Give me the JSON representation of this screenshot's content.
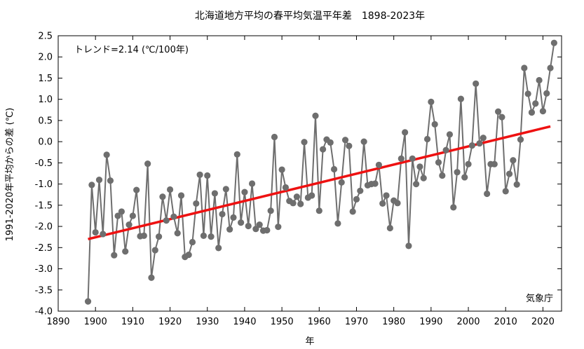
{
  "chart_data": {
    "type": "line",
    "title": "北海道地方平均の春平均気温平年差　1898-2023年",
    "xlabel": "年",
    "ylabel": "1991-2020年平均からの差 (℃)",
    "xlim": [
      1890,
      2025
    ],
    "ylim": [
      -4.0,
      2.5
    ],
    "xticks": [
      "1890",
      "1900",
      "1910",
      "1920",
      "1930",
      "1940",
      "1950",
      "1960",
      "1970",
      "1980",
      "1990",
      "2000",
      "2010",
      "2020"
    ],
    "yticks": [
      "-4.0",
      "-3.5",
      "-3.0",
      "-2.5",
      "-2.0",
      "-1.5",
      "-1.0",
      "-0.5",
      "0.0",
      "0.5",
      "1.0",
      "1.5",
      "2.0",
      "2.5"
    ],
    "grid": false,
    "annotation": "トレンド=2.14 (℃/100年)",
    "source": "気象庁",
    "series": [
      {
        "color": "#6e6e6e",
        "x": [
          1898,
          1899,
          1900,
          1901,
          1902,
          1903,
          1904,
          1905,
          1906,
          1907,
          1908,
          1909,
          1910,
          1911,
          1912,
          1913,
          1914,
          1915,
          1916,
          1917,
          1918,
          1919,
          1920,
          1921,
          1922,
          1923,
          1924,
          1925,
          1926,
          1927,
          1928,
          1929,
          1930,
          1931,
          1932,
          1933,
          1934,
          1935,
          1936,
          1937,
          1938,
          1939,
          1940,
          1941,
          1942,
          1943,
          1944,
          1945,
          1946,
          1947,
          1948,
          1949,
          1950,
          1951,
          1952,
          1953,
          1954,
          1955,
          1956,
          1957,
          1958,
          1959,
          1960,
          1961,
          1962,
          1963,
          1964,
          1965,
          1966,
          1967,
          1968,
          1969,
          1970,
          1971,
          1972,
          1973,
          1974,
          1975,
          1976,
          1977,
          1978,
          1979,
          1980,
          1981,
          1982,
          1983,
          1984,
          1985,
          1986,
          1987,
          1988,
          1989,
          1990,
          1991,
          1992,
          1993,
          1994,
          1995,
          1996,
          1997,
          1998,
          1999,
          2000,
          2001,
          2002,
          2003,
          2004,
          2005,
          2006,
          2007,
          2008,
          2009,
          2010,
          2011,
          2012,
          2013,
          2014,
          2015,
          2016,
          2017,
          2018,
          2019,
          2020,
          2021,
          2022,
          2023
        ],
        "values": [
          -3.77,
          -1.02,
          -2.14,
          -0.9,
          -2.18,
          -0.31,
          -0.92,
          -2.68,
          -1.75,
          -1.65,
          -2.59,
          -1.96,
          -1.75,
          -1.14,
          -2.23,
          -2.22,
          -0.52,
          -3.21,
          -2.56,
          -2.24,
          -1.3,
          -1.86,
          -1.13,
          -1.77,
          -2.16,
          -1.27,
          -2.72,
          -2.67,
          -2.37,
          -1.46,
          -0.78,
          -2.22,
          -0.8,
          -2.24,
          -1.22,
          -2.51,
          -1.71,
          -1.12,
          -2.07,
          -1.79,
          -0.3,
          -1.91,
          -1.19,
          -1.99,
          -0.99,
          -2.06,
          -1.96,
          -2.1,
          -2.09,
          -1.63,
          0.11,
          -2.01,
          -0.66,
          -1.08,
          -1.4,
          -1.45,
          -1.3,
          -1.47,
          -0.01,
          -1.32,
          -1.27,
          0.61,
          -1.63,
          -0.18,
          0.05,
          -0.02,
          -0.65,
          -1.93,
          -0.96,
          0.04,
          -0.1,
          -1.65,
          -1.36,
          -1.16,
          0.0,
          -1.03,
          -1.0,
          -0.99,
          -0.55,
          -1.46,
          -1.27,
          -2.04,
          -1.39,
          -1.45,
          -0.4,
          0.22,
          -2.46,
          -0.4,
          -1.0,
          -0.59,
          -0.86,
          0.06,
          0.94,
          0.41,
          -0.49,
          -0.8,
          -0.2,
          0.17,
          -1.55,
          -0.72,
          1.01,
          -0.84,
          -0.53,
          -0.09,
          1.37,
          -0.04,
          0.09,
          -1.23,
          -0.53,
          -0.53,
          0.71,
          0.58,
          -1.17,
          -0.76,
          -0.44,
          -1.01,
          0.05,
          1.74,
          1.13,
          0.69,
          0.9,
          1.45,
          0.72,
          1.14,
          1.74,
          2.33
        ]
      }
    ],
    "trend": {
      "color": "#ee1111",
      "x": [
        1898,
        2022
      ],
      "values": [
        -2.3,
        0.36
      ]
    }
  }
}
